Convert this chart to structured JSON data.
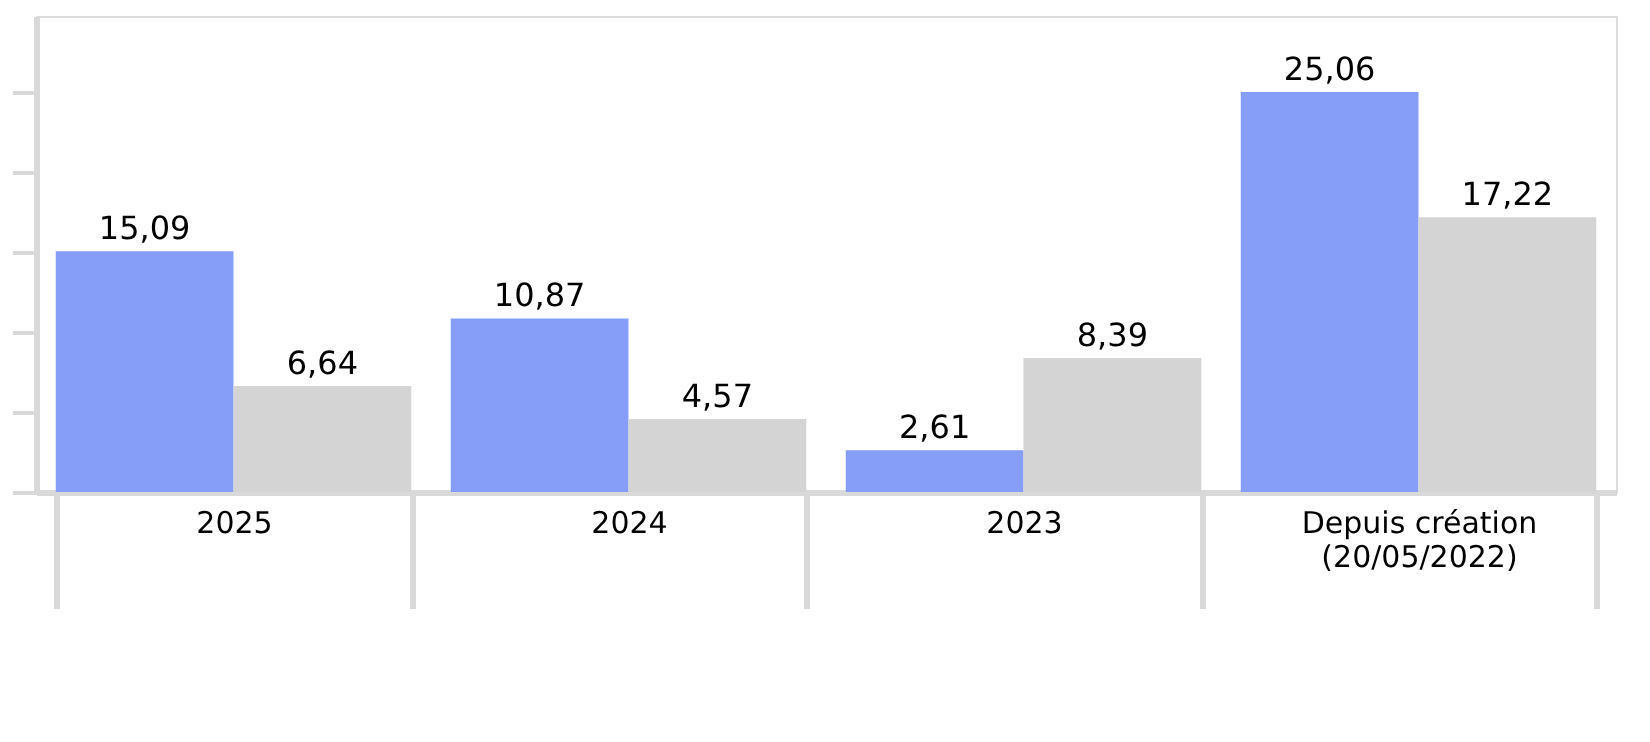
{
  "chart_data": {
    "type": "bar",
    "categories": [
      "2025",
      "2024",
      "2023",
      "Depuis création (20/05/2022)"
    ],
    "series": [
      {
        "color": "#869ef7",
        "values": [
          15.09,
          10.87,
          2.61,
          25.06
        ],
        "value_labels": [
          "15,09",
          "10,87",
          "2,61",
          "25,06"
        ]
      },
      {
        "color": "#d4d4d4",
        "values": [
          6.64,
          4.57,
          8.39,
          17.22
        ],
        "value_labels": [
          "6,64",
          "4,57",
          "8,39",
          "17,22"
        ]
      }
    ],
    "tick_labels": "x"
  }
}
